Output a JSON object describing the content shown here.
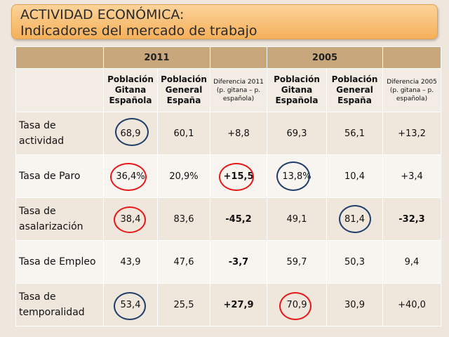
{
  "title": {
    "line1": "ACTIVIDAD ECONÓMICA:",
    "line2": "Indicadores del mercado de trabajo"
  },
  "years": {
    "y2011": "2011",
    "y2005": "2005"
  },
  "headers": {
    "pob_gitana": "Población Gitana Española",
    "pob_general": "Población General España",
    "dif_2011": "Diferencia 2011 (p. gitana – p. española)",
    "dif_2005": "Diferencia 2005 (p. gitana – p. española)"
  },
  "rows": [
    {
      "label": "Tasa de actividad",
      "g2011": "68,9",
      "e2011": "60,1",
      "d2011": "+8,8",
      "g2005": "69,3",
      "e2005": "56,1",
      "d2005": "+13,2"
    },
    {
      "label": "Tasa de Paro",
      "g2011": "36,4%",
      "e2011": "20,9%",
      "d2011": "+15,5",
      "g2005": "13,8%",
      "e2005": "10,4",
      "d2005": "+3,4"
    },
    {
      "label": "Tasa de asalarización",
      "g2011": "38,4",
      "e2011": "83,6",
      "d2011": "-45,2",
      "g2005": "49,1",
      "e2005": "81,4",
      "d2005": "-32,3"
    },
    {
      "label": "Tasa de Empleo",
      "g2011": "43,9",
      "e2011": "47,6",
      "d2011": "-3,7",
      "g2005": "59,7",
      "e2005": "50,3",
      "d2005": "9,4"
    },
    {
      "label": "Tasa de temporalidad",
      "g2011": "53,4",
      "e2011": "25,5",
      "d2011": "+27,9",
      "g2005": "70,9",
      "e2005": "30,9",
      "d2005": "+40,0"
    }
  ],
  "colors": {
    "highlight_blue": "#213f6b",
    "highlight_red": "#e81818",
    "title_bar": "#f5b05a",
    "header_band": "#c9a77d"
  }
}
